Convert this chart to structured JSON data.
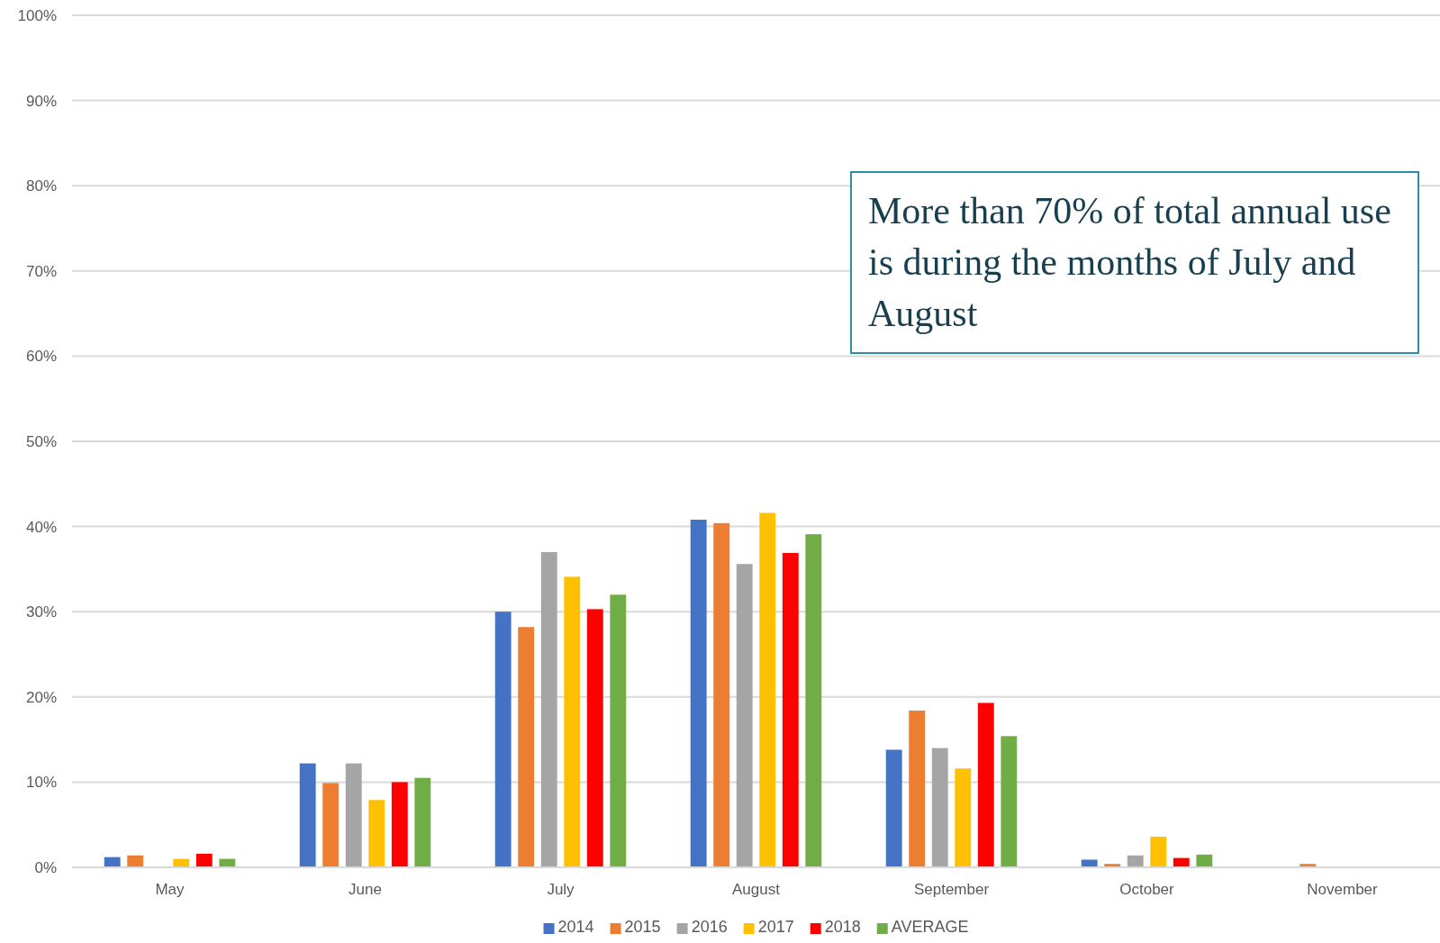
{
  "chart_data": {
    "type": "bar",
    "categories": [
      "May",
      "June",
      "July",
      "August",
      "September",
      "October",
      "November"
    ],
    "series": [
      {
        "name": "2014",
        "color": "#4472c4",
        "values": [
          1.2,
          12.2,
          30.0,
          40.8,
          13.8,
          0.9,
          0
        ]
      },
      {
        "name": "2015",
        "color": "#ed7d31",
        "values": [
          1.4,
          9.9,
          28.2,
          40.4,
          18.4,
          0.4,
          0.4
        ]
      },
      {
        "name": "2016",
        "color": "#a5a5a5",
        "values": [
          0,
          12.2,
          37.0,
          35.6,
          14.0,
          1.4,
          0
        ]
      },
      {
        "name": "2017",
        "color": "#ffc000",
        "values": [
          1.0,
          7.9,
          34.1,
          41.6,
          11.6,
          3.6,
          0
        ]
      },
      {
        "name": "2018",
        "color": "#ff0000",
        "values": [
          1.6,
          10.0,
          30.3,
          36.9,
          19.3,
          1.1,
          0
        ]
      },
      {
        "name": "AVERAGE",
        "color": "#70ad47",
        "values": [
          1.0,
          10.5,
          32.0,
          39.1,
          15.4,
          1.5,
          0
        ]
      }
    ],
    "ylim": [
      0,
      100
    ],
    "yticks": [
      {
        "value": 0,
        "label": "0%"
      },
      {
        "value": 10,
        "label": "10%"
      },
      {
        "value": 20,
        "label": "20%"
      },
      {
        "value": 30,
        "label": "30%"
      },
      {
        "value": 40,
        "label": "40%"
      },
      {
        "value": 50,
        "label": "50%"
      },
      {
        "value": 60,
        "label": "60%"
      },
      {
        "value": 70,
        "label": "70%"
      },
      {
        "value": 80,
        "label": "80%"
      },
      {
        "value": 90,
        "label": "90%"
      },
      {
        "value": 100,
        "label": "100%"
      }
    ],
    "grid": "y",
    "legend": "bottom",
    "annotations": [
      "More than 70% of total annual use is during the months of July and August"
    ]
  }
}
